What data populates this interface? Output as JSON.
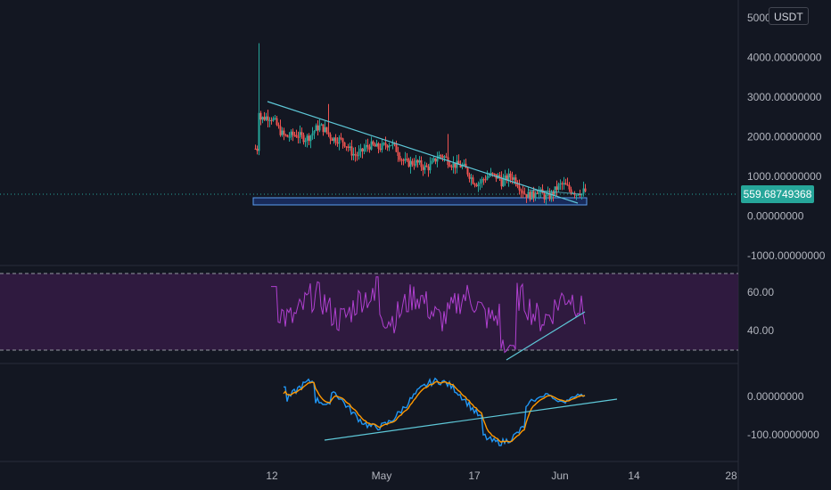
{
  "chart_data": [
    {
      "type": "candlestick",
      "quote_currency": "USDT",
      "last_price": "559.68749368",
      "y_ticks": [
        "5000",
        "4000.00000000",
        "3000.00000000",
        "2000.00000000",
        "1000.00000000",
        "0.00000000",
        "-1000.00000000"
      ],
      "y_tick_values": [
        5000,
        4000,
        3000,
        2000,
        1000,
        0,
        -1000
      ],
      "ylim": [
        -1150,
        5050
      ],
      "x_ticks": [
        "12",
        "May",
        "17",
        "Jun",
        "14",
        "28"
      ],
      "support_zone": [
        330,
        510
      ],
      "colors": {
        "up": "#26a69a",
        "down": "#ef5350",
        "trendline": "#5ec8d8",
        "zone": "#2962ff"
      }
    },
    {
      "type": "line",
      "indicator": "RSI",
      "y_ticks": [
        "60.00",
        "40.00"
      ],
      "y_tick_values": [
        60,
        40
      ],
      "bands": [
        70,
        30
      ],
      "colors": {
        "line": "#b040d0",
        "band_fill": "#3a1c4a"
      }
    },
    {
      "type": "line",
      "indicator": "oscillator",
      "y_ticks": [
        "0.00000000",
        "-100.00000000"
      ],
      "y_tick_values": [
        0,
        -100
      ],
      "colors": {
        "fast": "#2196f3",
        "slow": "#ff9800"
      }
    }
  ]
}
